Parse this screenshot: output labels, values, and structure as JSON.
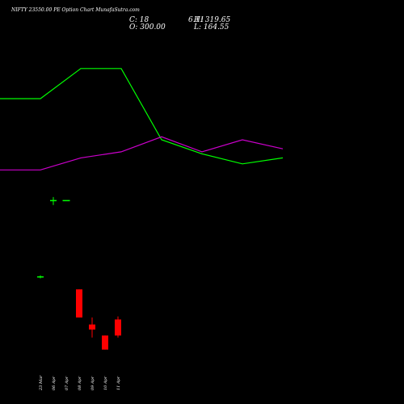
{
  "header": {
    "title": "NIFTY 23550.00 PE Option Chart MunafaSutra.com",
    "close": "C: 18",
    "open": "O: 300.00",
    "high": "H: 319.65",
    "low": "L: 164.55",
    "change": "6.11"
  },
  "chart_data": {
    "type": "candlestick",
    "title": "NIFTY 23550.00 PE Option Chart MunafaSutra.com",
    "categories": [
      "23 Mar",
      "06 Apr",
      "07 Apr",
      "08 Apr",
      "09 Apr",
      "10 Apr",
      "11 Apr"
    ],
    "candles": [
      {
        "date": "23 Mar",
        "open": 245,
        "high": 246,
        "low": 243,
        "close": 244,
        "color": "#00ff00"
      },
      {
        "date": "06 Apr",
        "open": 320,
        "high": 324,
        "low": 316,
        "close": 321,
        "color": "#00ff00"
      },
      {
        "date": "07 Apr",
        "open": 321,
        "high": 321,
        "low": 321,
        "close": 321,
        "color": "#00ff00"
      },
      {
        "date": "08 Apr",
        "open": 232,
        "high": 232,
        "low": 204,
        "close": 204,
        "color": "#ff0000"
      },
      {
        "date": "09 Apr",
        "open": 197,
        "high": 204,
        "low": 184,
        "close": 192,
        "color": "#ff0000"
      },
      {
        "date": "10 Apr",
        "open": 186,
        "high": 186,
        "low": 172,
        "close": 172,
        "color": "#ff0000"
      },
      {
        "date": "11 Apr",
        "open": 202,
        "high": 205,
        "low": 184,
        "close": 186,
        "color": "#ff0000"
      }
    ],
    "ylim": [
      150,
      480
    ],
    "lines": [
      {
        "color": "#00ff00",
        "points": [
          [
            0,
            422
          ],
          [
            50,
            422
          ],
          [
            100,
            452
          ],
          [
            150,
            452
          ],
          [
            200,
            381
          ],
          [
            250,
            367
          ],
          [
            300,
            357
          ],
          [
            350,
            363
          ]
        ]
      },
      {
        "color": "#cc00cc",
        "points": [
          [
            0,
            351
          ],
          [
            50,
            351
          ],
          [
            100,
            363
          ],
          [
            150,
            369
          ],
          [
            200,
            384
          ],
          [
            250,
            369
          ],
          [
            300,
            381
          ],
          [
            350,
            372
          ]
        ]
      }
    ],
    "colors": {
      "background": "#000000",
      "up": "#00ff00",
      "down": "#ff0000",
      "text": "#ffffff"
    }
  }
}
